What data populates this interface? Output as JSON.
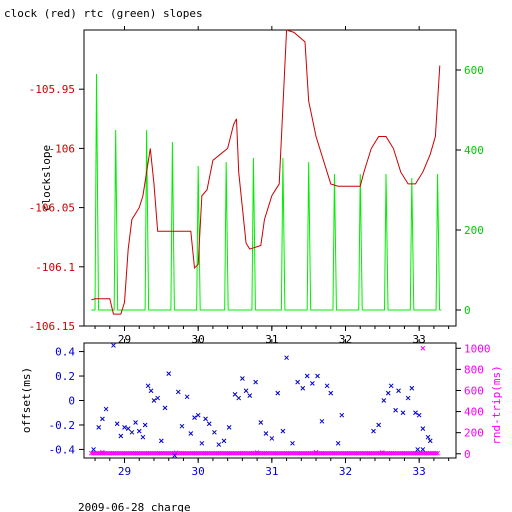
{
  "chart_data": [
    {
      "type": "line",
      "title": "clock (red) rtc (green) slopes",
      "xlabel": "",
      "ylabel": "clockslope",
      "xlim": [
        28.45,
        33.5
      ],
      "ylim": [
        -106.15,
        -105.9
      ],
      "y2lim": [
        -40,
        700
      ],
      "x_ticks": [
        29,
        30,
        31,
        32,
        33
      ],
      "x_tick_labels": [
        "29",
        "30",
        "31",
        "32",
        "33"
      ],
      "y_ticks": [
        -106.15,
        -106.1,
        -106.05,
        -106,
        -105.95
      ],
      "y_tick_labels": [
        "-106.15",
        "-106.1",
        "-106.05",
        "-106",
        "-105.95"
      ],
      "y2_ticks": [
        0,
        200,
        400,
        600
      ],
      "y2_tick_labels": [
        "0",
        "200",
        "400",
        "600"
      ],
      "colors": {
        "clock": "#cc0000",
        "rtc": "#00ee00",
        "axis_left": "#cc0000",
        "axis_right": "#00cc00"
      },
      "series": [
        {
          "name": "clock",
          "axis": "left",
          "points": [
            [
              28.55,
              -106.128
            ],
            [
              28.6,
              -106.127
            ],
            [
              28.8,
              -106.127
            ],
            [
              28.85,
              -106.14
            ],
            [
              28.95,
              -106.14
            ],
            [
              29.0,
              -106.13
            ],
            [
              29.05,
              -106.085
            ],
            [
              29.1,
              -106.06
            ],
            [
              29.2,
              -106.05
            ],
            [
              29.25,
              -106.04
            ],
            [
              29.3,
              -106.02
            ],
            [
              29.35,
              -106.0
            ],
            [
              29.4,
              -106.03
            ],
            [
              29.45,
              -106.07
            ],
            [
              29.55,
              -106.07
            ],
            [
              29.9,
              -106.07
            ],
            [
              29.95,
              -106.101
            ],
            [
              30.0,
              -106.098
            ],
            [
              30.05,
              -106.04
            ],
            [
              30.12,
              -106.035
            ],
            [
              30.2,
              -106.01
            ],
            [
              30.3,
              -106.005
            ],
            [
              30.4,
              -106.0
            ],
            [
              30.48,
              -105.98
            ],
            [
              30.52,
              -105.975
            ],
            [
              30.55,
              -106.02
            ],
            [
              30.65,
              -106.08
            ],
            [
              30.7,
              -106.085
            ],
            [
              30.85,
              -106.082
            ],
            [
              30.9,
              -106.06
            ],
            [
              31.0,
              -106.04
            ],
            [
              31.1,
              -106.03
            ],
            [
              31.2,
              -105.9
            ],
            [
              31.3,
              -105.902
            ],
            [
              31.45,
              -105.91
            ],
            [
              31.5,
              -105.96
            ],
            [
              31.6,
              -105.99
            ],
            [
              31.7,
              -106.01
            ],
            [
              31.8,
              -106.03
            ],
            [
              31.9,
              -106.032
            ],
            [
              32.2,
              -106.032
            ],
            [
              32.25,
              -106.02
            ],
            [
              32.35,
              -106.0
            ],
            [
              32.45,
              -105.99
            ],
            [
              32.55,
              -105.99
            ],
            [
              32.65,
              -106.0
            ],
            [
              32.75,
              -106.02
            ],
            [
              32.85,
              -106.03
            ],
            [
              32.95,
              -106.03
            ],
            [
              33.05,
              -106.02
            ],
            [
              33.15,
              -106.005
            ],
            [
              33.22,
              -105.99
            ],
            [
              33.28,
              -105.93
            ]
          ]
        },
        {
          "name": "rtc",
          "axis": "right",
          "baseline": 0,
          "spikes": [
            [
              28.62,
              590
            ],
            [
              28.88,
              450
            ],
            [
              29.3,
              450
            ],
            [
              29.65,
              420
            ],
            [
              30.0,
              360
            ],
            [
              30.38,
              370
            ],
            [
              30.75,
              380
            ],
            [
              31.15,
              380
            ],
            [
              31.5,
              370
            ],
            [
              31.85,
              340
            ],
            [
              32.2,
              340
            ],
            [
              32.55,
              340
            ],
            [
              32.9,
              330
            ],
            [
              33.25,
              340
            ]
          ]
        }
      ]
    },
    {
      "type": "scatter",
      "title": "",
      "xlabel": "2009-06-28 charge",
      "ylabel": "offset(ms)",
      "y2label": "rnd-trip(ms)",
      "xlim": [
        28.45,
        33.5
      ],
      "ylim": [
        -0.47,
        0.47
      ],
      "y2lim": [
        -40,
        1050
      ],
      "x_ticks": [
        29,
        30,
        31,
        32,
        33
      ],
      "x_tick_labels": [
        "29",
        "30",
        "31",
        "32",
        "33"
      ],
      "y_ticks": [
        -0.4,
        -0.2,
        0,
        0.2,
        0.4
      ],
      "y_tick_labels": [
        "-0.4",
        "-0.2",
        "0",
        "0.2",
        "0.4"
      ],
      "y2_ticks": [
        0,
        200,
        400,
        600,
        800,
        1000
      ],
      "y2_tick_labels": [
        "0",
        "200",
        "400",
        "600",
        "800",
        "1000"
      ],
      "colors": {
        "offset": "#0000cc",
        "rndtrip": "#ff00ff",
        "axis_left": "#0000cc",
        "axis_right": "#ff00ff"
      },
      "series": [
        {
          "name": "offset",
          "axis": "left",
          "marker": "x",
          "points": [
            [
              28.58,
              -0.4
            ],
            [
              28.65,
              -0.22
            ],
            [
              28.7,
              -0.15
            ],
            [
              28.75,
              -0.07
            ],
            [
              28.85,
              0.45
            ],
            [
              28.9,
              -0.19
            ],
            [
              28.95,
              -0.29
            ],
            [
              29.0,
              -0.22
            ],
            [
              29.05,
              -0.23
            ],
            [
              29.1,
              -0.26
            ],
            [
              29.15,
              -0.18
            ],
            [
              29.2,
              -0.25
            ],
            [
              29.25,
              -0.3
            ],
            [
              29.28,
              -0.2
            ],
            [
              29.32,
              0.12
            ],
            [
              29.36,
              0.08
            ],
            [
              29.4,
              0.0
            ],
            [
              29.45,
              0.02
            ],
            [
              29.5,
              -0.33
            ],
            [
              29.55,
              -0.06
            ],
            [
              29.6,
              0.22
            ],
            [
              29.68,
              -0.45
            ],
            [
              29.73,
              0.07
            ],
            [
              29.78,
              -0.21
            ],
            [
              29.85,
              0.03
            ],
            [
              29.9,
              -0.27
            ],
            [
              29.95,
              -0.14
            ],
            [
              30.0,
              -0.12
            ],
            [
              30.05,
              -0.35
            ],
            [
              30.1,
              -0.15
            ],
            [
              30.15,
              -0.19
            ],
            [
              30.22,
              -0.26
            ],
            [
              30.28,
              -0.36
            ],
            [
              30.35,
              -0.33
            ],
            [
              30.42,
              -0.22
            ],
            [
              30.5,
              0.05
            ],
            [
              30.55,
              0.02
            ],
            [
              30.6,
              0.18
            ],
            [
              30.65,
              0.08
            ],
            [
              30.7,
              0.04
            ],
            [
              30.78,
              0.15
            ],
            [
              30.85,
              -0.18
            ],
            [
              30.92,
              -0.27
            ],
            [
              31.0,
              -0.31
            ],
            [
              31.08,
              0.06
            ],
            [
              31.15,
              -0.25
            ],
            [
              31.2,
              0.35
            ],
            [
              31.28,
              -0.35
            ],
            [
              31.35,
              0.15
            ],
            [
              31.42,
              0.1
            ],
            [
              31.48,
              0.2
            ],
            [
              31.55,
              0.14
            ],
            [
              31.62,
              0.2
            ],
            [
              31.68,
              -0.17
            ],
            [
              31.75,
              0.12
            ],
            [
              31.8,
              0.06
            ],
            [
              31.9,
              -0.35
            ],
            [
              31.95,
              -0.12
            ],
            [
              32.38,
              -0.25
            ],
            [
              32.45,
              -0.2
            ],
            [
              32.52,
              0.0
            ],
            [
              32.58,
              0.06
            ],
            [
              32.62,
              0.12
            ],
            [
              32.68,
              -0.08
            ],
            [
              32.72,
              0.08
            ],
            [
              32.78,
              -0.1
            ],
            [
              32.85,
              0.02
            ],
            [
              32.9,
              0.1
            ],
            [
              32.95,
              -0.1
            ],
            [
              33.0,
              -0.12
            ],
            [
              33.05,
              -0.23
            ],
            [
              33.12,
              -0.3
            ],
            [
              33.15,
              -0.33
            ],
            [
              33.05,
              -0.4
            ],
            [
              32.98,
              -0.4
            ]
          ]
        },
        {
          "name": "rndtrip",
          "axis": "right",
          "marker": "x",
          "band": {
            "x_start": 28.55,
            "x_end": 33.25,
            "value": 5
          },
          "points": [
            [
              33.05,
              1000
            ],
            [
              28.7,
              15
            ],
            [
              29.7,
              10
            ],
            [
              30.8,
              12
            ],
            [
              31.6,
              15
            ],
            [
              32.5,
              12
            ]
          ]
        }
      ]
    }
  ]
}
